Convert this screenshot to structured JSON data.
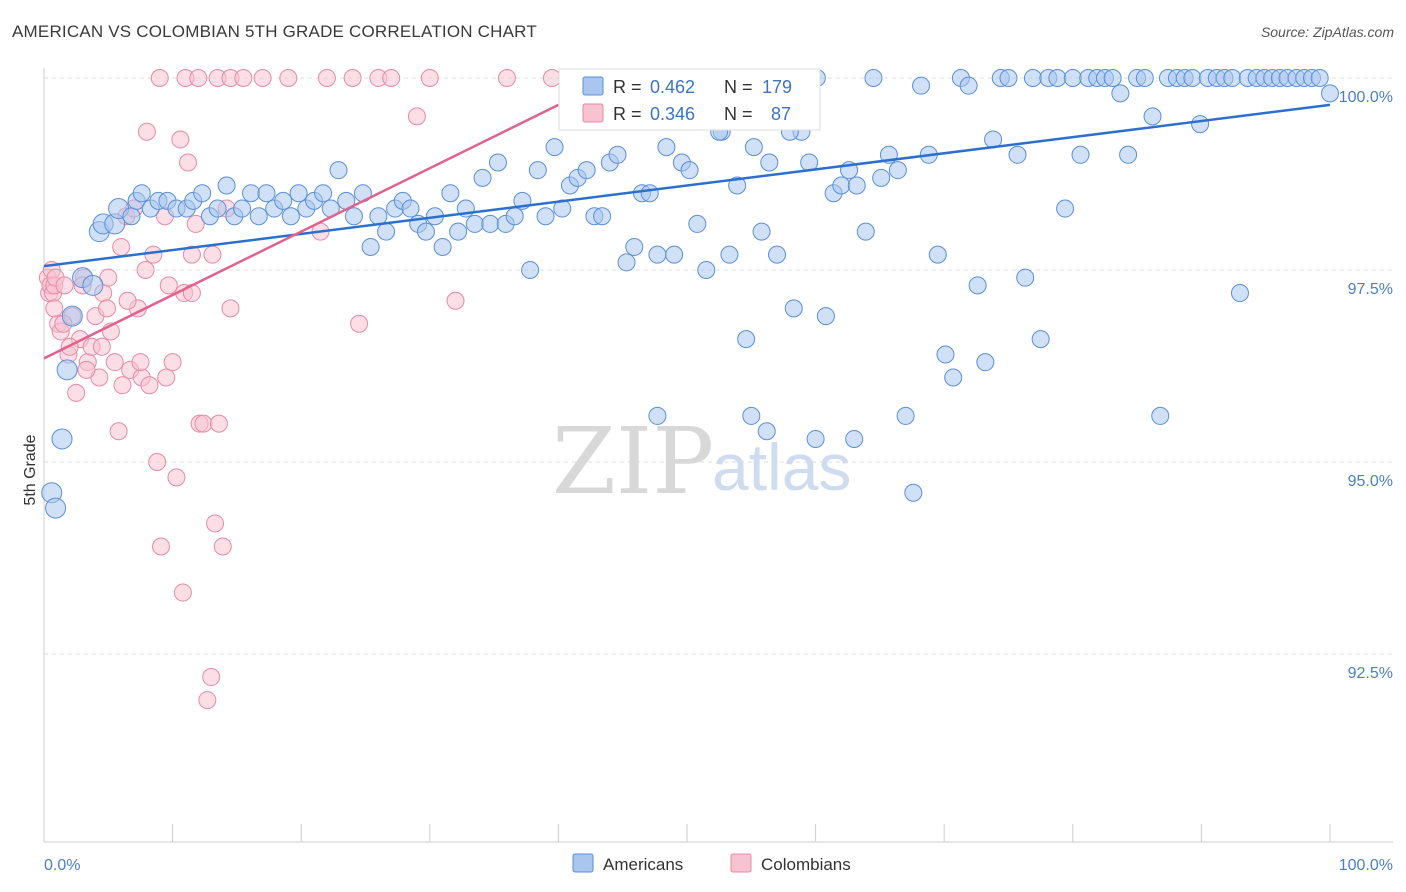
{
  "title": "AMERICAN VS COLOMBIAN 5TH GRADE CORRELATION CHART",
  "source": "Source: ZipAtlas.com",
  "watermark": {
    "zip": "ZIP",
    "atlas": "atlas"
  },
  "colors": {
    "americans_fill": "#a9c6ee",
    "americans_stroke": "#5b8fd6",
    "americans_line": "#2b6fcf",
    "colombians_fill": "#f7c3d2",
    "colombians_stroke": "#e78aa6",
    "colombians_line": "#e0628d",
    "tick_text": "#4a7fc8",
    "grid": "#dddddd"
  },
  "legend_box": {
    "row1": {
      "r_label": "R =",
      "r_value": "0.462",
      "n_label": "N =",
      "n_value": "179"
    },
    "row2": {
      "r_label": "R =",
      "r_value": "0.346",
      "n_label": "N =",
      "n_value": "87"
    }
  },
  "chart_data": {
    "type": "scatter",
    "title": "AMERICAN VS COLOMBIAN 5TH GRADE CORRELATION CHART",
    "xlabel": "",
    "ylabel": "5th Grade",
    "xlim": [
      0,
      100
    ],
    "ylim": [
      90.0,
      100.3
    ],
    "x_tick_labels": [
      "0.0%",
      "100.0%"
    ],
    "y_ticks": [
      92.5,
      95.0,
      97.5,
      100.0
    ],
    "y_tick_labels": [
      "92.5%",
      "95.0%",
      "97.5%",
      "100.0%"
    ],
    "grid": true,
    "legend_position": "bottom",
    "series": [
      {
        "name": "Americans",
        "R": 0.462,
        "N": 179,
        "trend": {
          "x": [
            0,
            100
          ],
          "y": [
            97.55,
            99.65
          ]
        },
        "points": [
          [
            0.6,
            94.6
          ],
          [
            0.9,
            94.4
          ],
          [
            1.4,
            95.3
          ],
          [
            1.8,
            96.2
          ],
          [
            2.2,
            96.9
          ],
          [
            3.0,
            97.4
          ],
          [
            3.8,
            97.3
          ],
          [
            4.3,
            98.0
          ],
          [
            4.6,
            98.1
          ],
          [
            5.5,
            98.1
          ],
          [
            5.8,
            98.3
          ],
          [
            6.8,
            98.2
          ],
          [
            7.2,
            98.4
          ],
          [
            7.6,
            98.5
          ],
          [
            8.3,
            98.3
          ],
          [
            8.9,
            98.4
          ],
          [
            9.6,
            98.4
          ],
          [
            10.3,
            98.3
          ],
          [
            11.1,
            98.3
          ],
          [
            11.6,
            98.4
          ],
          [
            12.3,
            98.5
          ],
          [
            12.9,
            98.2
          ],
          [
            13.5,
            98.3
          ],
          [
            14.2,
            98.6
          ],
          [
            14.8,
            98.2
          ],
          [
            15.4,
            98.3
          ],
          [
            16.1,
            98.5
          ],
          [
            16.7,
            98.2
          ],
          [
            17.3,
            98.5
          ],
          [
            17.9,
            98.3
          ],
          [
            18.6,
            98.4
          ],
          [
            19.2,
            98.2
          ],
          [
            19.8,
            98.5
          ],
          [
            20.4,
            98.3
          ],
          [
            21.0,
            98.4
          ],
          [
            21.7,
            98.5
          ],
          [
            22.3,
            98.3
          ],
          [
            22.9,
            98.8
          ],
          [
            23.5,
            98.4
          ],
          [
            24.1,
            98.2
          ],
          [
            24.8,
            98.5
          ],
          [
            25.4,
            97.8
          ],
          [
            26.0,
            98.2
          ],
          [
            26.6,
            98.0
          ],
          [
            27.3,
            98.3
          ],
          [
            27.9,
            98.4
          ],
          [
            28.5,
            98.3
          ],
          [
            29.1,
            98.1
          ],
          [
            29.7,
            98.0
          ],
          [
            30.4,
            98.2
          ],
          [
            31.0,
            97.8
          ],
          [
            31.6,
            98.5
          ],
          [
            32.2,
            98.0
          ],
          [
            32.8,
            98.3
          ],
          [
            33.5,
            98.1
          ],
          [
            34.1,
            98.7
          ],
          [
            34.7,
            98.1
          ],
          [
            35.3,
            98.9
          ],
          [
            35.9,
            98.1
          ],
          [
            36.6,
            98.2
          ],
          [
            37.2,
            98.4
          ],
          [
            37.8,
            97.5
          ],
          [
            38.4,
            98.8
          ],
          [
            39.0,
            98.2
          ],
          [
            39.7,
            99.1
          ],
          [
            40.3,
            98.3
          ],
          [
            40.9,
            98.6
          ],
          [
            41.5,
            98.7
          ],
          [
            42.2,
            98.8
          ],
          [
            42.8,
            98.2
          ],
          [
            43.4,
            98.2
          ],
          [
            44.0,
            98.9
          ],
          [
            44.6,
            99.0
          ],
          [
            45.3,
            97.6
          ],
          [
            45.9,
            97.8
          ],
          [
            46.5,
            98.5
          ],
          [
            47.1,
            98.5
          ],
          [
            47.7,
            97.7
          ],
          [
            48.4,
            99.1
          ],
          [
            49.0,
            97.7
          ],
          [
            49.6,
            98.9
          ],
          [
            50.2,
            98.8
          ],
          [
            50.8,
            98.1
          ],
          [
            51.5,
            97.5
          ],
          [
            52.1,
            99.5
          ],
          [
            52.7,
            99.3
          ],
          [
            53.3,
            97.7
          ],
          [
            53.9,
            98.6
          ],
          [
            54.6,
            96.6
          ],
          [
            55.2,
            99.1
          ],
          [
            55.8,
            98.0
          ],
          [
            56.4,
            98.9
          ],
          [
            57.0,
            97.7
          ],
          [
            57.7,
            99.5
          ],
          [
            58.3,
            97.0
          ],
          [
            58.9,
            99.3
          ],
          [
            59.5,
            98.9
          ],
          [
            60.1,
            100.0
          ],
          [
            60.8,
            96.9
          ],
          [
            61.4,
            98.5
          ],
          [
            62.0,
            98.6
          ],
          [
            62.6,
            98.8
          ],
          [
            63.2,
            98.6
          ],
          [
            63.9,
            98.0
          ],
          [
            64.5,
            100.0
          ],
          [
            65.1,
            98.7
          ],
          [
            65.7,
            99.0
          ],
          [
            66.4,
            98.8
          ],
          [
            67.0,
            95.6
          ],
          [
            67.6,
            94.6
          ],
          [
            68.2,
            99.9
          ],
          [
            68.8,
            99.0
          ],
          [
            69.5,
            97.7
          ],
          [
            70.1,
            96.4
          ],
          [
            70.7,
            96.1
          ],
          [
            71.3,
            100.0
          ],
          [
            71.9,
            99.9
          ],
          [
            72.6,
            97.3
          ],
          [
            73.2,
            96.3
          ],
          [
            73.8,
            99.2
          ],
          [
            74.4,
            100.0
          ],
          [
            75.0,
            100.0
          ],
          [
            75.7,
            99.0
          ],
          [
            76.3,
            97.4
          ],
          [
            76.9,
            100.0
          ],
          [
            77.5,
            96.6
          ],
          [
            78.1,
            100.0
          ],
          [
            78.8,
            100.0
          ],
          [
            79.4,
            98.3
          ],
          [
            80.0,
            100.0
          ],
          [
            80.6,
            99.0
          ],
          [
            81.2,
            100.0
          ],
          [
            81.9,
            100.0
          ],
          [
            82.5,
            100.0
          ],
          [
            83.1,
            100.0
          ],
          [
            83.7,
            99.8
          ],
          [
            84.3,
            99.0
          ],
          [
            85.0,
            100.0
          ],
          [
            85.6,
            100.0
          ],
          [
            86.2,
            99.5
          ],
          [
            86.8,
            95.6
          ],
          [
            87.4,
            100.0
          ],
          [
            88.1,
            100.0
          ],
          [
            88.7,
            100.0
          ],
          [
            89.3,
            100.0
          ],
          [
            89.9,
            99.4
          ],
          [
            90.5,
            100.0
          ],
          [
            91.2,
            100.0
          ],
          [
            91.8,
            100.0
          ],
          [
            92.4,
            100.0
          ],
          [
            93.0,
            97.2
          ],
          [
            93.6,
            100.0
          ],
          [
            94.3,
            100.0
          ],
          [
            94.9,
            100.0
          ],
          [
            95.5,
            100.0
          ],
          [
            96.1,
            100.0
          ],
          [
            96.7,
            100.0
          ],
          [
            97.4,
            100.0
          ],
          [
            98.0,
            100.0
          ],
          [
            98.6,
            100.0
          ],
          [
            99.2,
            100.0
          ],
          [
            100.0,
            99.8
          ],
          [
            60.0,
            95.3
          ],
          [
            57.0,
            99.6
          ],
          [
            58.0,
            99.3
          ],
          [
            56.0,
            99.5
          ],
          [
            63.0,
            95.3
          ],
          [
            55.0,
            95.6
          ],
          [
            56.2,
            95.4
          ],
          [
            47.7,
            95.6
          ],
          [
            48.2,
            99.6
          ],
          [
            52.5,
            99.3
          ],
          [
            54.0,
            99.6
          ],
          [
            49.5,
            99.8
          ],
          [
            46.2,
            99.7
          ],
          [
            50.0,
            99.8
          ],
          [
            51.1,
            99.9
          ],
          [
            53.0,
            99.9
          ],
          [
            44.8,
            99.9
          ]
        ]
      },
      {
        "name": "Colombians",
        "R": 0.346,
        "N": 87,
        "trend": {
          "x": [
            0,
            40
          ],
          "y": [
            96.35,
            99.65
          ]
        },
        "points": [
          [
            0.3,
            97.4
          ],
          [
            0.4,
            97.2
          ],
          [
            0.5,
            97.3
          ],
          [
            0.6,
            97.5
          ],
          [
            0.7,
            97.2
          ],
          [
            0.8,
            97.3
          ],
          [
            0.9,
            97.4
          ],
          [
            1.1,
            96.8
          ],
          [
            1.3,
            96.7
          ],
          [
            1.6,
            97.3
          ],
          [
            1.9,
            96.4
          ],
          [
            2.2,
            96.9
          ],
          [
            2.5,
            95.9
          ],
          [
            2.8,
            96.6
          ],
          [
            3.1,
            97.4
          ],
          [
            3.4,
            96.3
          ],
          [
            3.7,
            96.5
          ],
          [
            4.0,
            96.9
          ],
          [
            4.3,
            96.1
          ],
          [
            4.6,
            97.2
          ],
          [
            4.9,
            97.0
          ],
          [
            5.2,
            96.7
          ],
          [
            5.5,
            96.3
          ],
          [
            5.8,
            95.4
          ],
          [
            6.1,
            96.0
          ],
          [
            6.4,
            98.2
          ],
          [
            6.7,
            96.2
          ],
          [
            7.0,
            98.3
          ],
          [
            7.3,
            97.0
          ],
          [
            7.6,
            96.1
          ],
          [
            7.9,
            97.5
          ],
          [
            8.2,
            96.0
          ],
          [
            8.5,
            97.7
          ],
          [
            8.8,
            95.0
          ],
          [
            9.1,
            93.9
          ],
          [
            9.4,
            98.2
          ],
          [
            9.7,
            97.3
          ],
          [
            10.0,
            96.3
          ],
          [
            10.3,
            94.8
          ],
          [
            10.6,
            99.2
          ],
          [
            10.9,
            97.2
          ],
          [
            11.2,
            98.9
          ],
          [
            11.5,
            97.7
          ],
          [
            11.8,
            98.1
          ],
          [
            12.1,
            95.5
          ],
          [
            12.4,
            95.5
          ],
          [
            12.7,
            91.9
          ],
          [
            13.0,
            92.2
          ],
          [
            13.3,
            94.2
          ],
          [
            13.6,
            95.5
          ],
          [
            13.9,
            93.9
          ],
          [
            14.2,
            98.3
          ],
          [
            14.5,
            97.0
          ],
          [
            8.0,
            99.3
          ],
          [
            9.0,
            100.0
          ],
          [
            11.0,
            100.0
          ],
          [
            12.0,
            100.0
          ],
          [
            13.5,
            100.0
          ],
          [
            14.5,
            100.0
          ],
          [
            15.5,
            100.0
          ],
          [
            17.0,
            100.0
          ],
          [
            19.0,
            100.0
          ],
          [
            22.0,
            100.0
          ],
          [
            24.0,
            100.0
          ],
          [
            26.0,
            100.0
          ],
          [
            27.0,
            100.0
          ],
          [
            29.0,
            99.5
          ],
          [
            30.0,
            100.0
          ],
          [
            36.0,
            100.0
          ],
          [
            39.5,
            100.0
          ],
          [
            21.5,
            98.0
          ],
          [
            24.5,
            96.8
          ],
          [
            32.0,
            97.1
          ],
          [
            6.5,
            97.1
          ],
          [
            5.0,
            97.4
          ],
          [
            4.5,
            96.5
          ],
          [
            3.3,
            96.2
          ],
          [
            2.0,
            96.5
          ],
          [
            1.5,
            96.8
          ],
          [
            0.8,
            97.0
          ],
          [
            3.0,
            97.3
          ],
          [
            6.0,
            97.8
          ],
          [
            7.5,
            96.3
          ],
          [
            9.5,
            96.1
          ],
          [
            10.8,
            93.3
          ],
          [
            11.5,
            97.2
          ],
          [
            13.1,
            97.7
          ]
        ]
      }
    ]
  }
}
